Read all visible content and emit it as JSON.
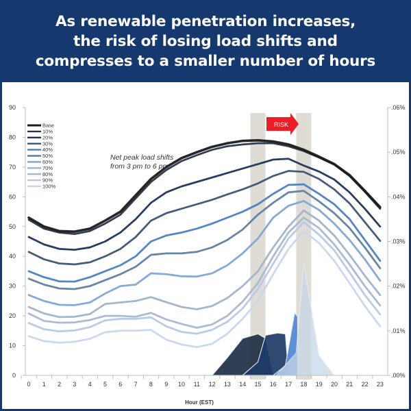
{
  "header": {
    "title_lines": [
      "As renewable penetration increases,",
      "the risk of losing load shifts and",
      "compresses to a smaller number of hours"
    ]
  },
  "colors": {
    "header_bg": "#15386f",
    "risk_arrow": "#ee1c24",
    "highlight_band": "#d9d6ce"
  },
  "chart_data": {
    "type": "line",
    "title": "As renewable penetration increases, the risk of losing load shifts and compresses to a smaller number of hours",
    "xlabel": "Hour (EST)",
    "ylabel": "",
    "y2label": "",
    "x": [
      0,
      1,
      2,
      3,
      4,
      5,
      6,
      7,
      8,
      9,
      10,
      11,
      12,
      13,
      14,
      15,
      16,
      17,
      18,
      19,
      20,
      21,
      22,
      23
    ],
    "x_tick_labels": [
      "0",
      "1",
      "2",
      "3",
      "4",
      "5",
      "6",
      "7",
      "8",
      "9",
      "10",
      "11",
      "12",
      "13",
      "14",
      "15",
      "16",
      "17",
      "18",
      "19",
      "20",
      "21",
      "22",
      "23"
    ],
    "ylim": [
      0,
      90
    ],
    "y_ticks": [
      0,
      10,
      20,
      30,
      40,
      50,
      60,
      70,
      80,
      90
    ],
    "y_tick_labels": [
      "0",
      "10",
      "20",
      "30",
      "40",
      "50",
      "60",
      "70",
      "80",
      "90"
    ],
    "y2lim": [
      0,
      0.06
    ],
    "y2_ticks": [
      0,
      0.01,
      0.02,
      0.03,
      0.04,
      0.05,
      0.06
    ],
    "y2_tick_labels": [
      ".00%",
      ".01%",
      ".02%",
      ".03%",
      ".04%",
      ".05%",
      ".06%"
    ],
    "grid": false,
    "legend_position": "top-left",
    "annotation": [
      "Net peak load shifts",
      "from 3 pm to 6 pm."
    ],
    "risk_label": "RISK",
    "highlight_hours": [
      15,
      18
    ],
    "series": [
      {
        "name": "Base",
        "color": "#1a1a1a",
        "values": [
          53,
          50,
          48.5,
          48.3,
          49.3,
          52,
          55,
          60.5,
          66,
          70,
          73,
          75,
          76.8,
          78,
          78.8,
          79,
          78.6,
          77.6,
          75.8,
          73.5,
          71,
          67.3,
          62,
          56.5
        ]
      },
      {
        "name": "10%",
        "color": "#27344a",
        "values": [
          52.3,
          49.3,
          48,
          47.5,
          48.5,
          51,
          54,
          59.5,
          65,
          69,
          72,
          74,
          75.8,
          77,
          77.6,
          78,
          78,
          77,
          75.4,
          73.2,
          70.8,
          67,
          61.7,
          56
        ]
      },
      {
        "name": "20%",
        "color": "#1c3358",
        "values": [
          46.5,
          44,
          42.5,
          42.2,
          43,
          45,
          48,
          52.5,
          58,
          61.5,
          63.5,
          65,
          66.5,
          68,
          69.5,
          71,
          72.5,
          72.8,
          70.5,
          68.5,
          65.8,
          61.5,
          56,
          50
        ]
      },
      {
        "name": "30%",
        "color": "#3c5473",
        "values": [
          41.5,
          39,
          37.6,
          37.3,
          38,
          40,
          42.5,
          46.5,
          52,
          54.5,
          56,
          57.5,
          59,
          60.8,
          62.5,
          64.5,
          67,
          68.7,
          68.4,
          66,
          62.5,
          57.8,
          51.5,
          45.2
        ]
      },
      {
        "name": "40%",
        "color": "#4a7fc4",
        "values": [
          35,
          33,
          31.6,
          31.5,
          33,
          35,
          37,
          40,
          45,
          47,
          48,
          49.3,
          51,
          53,
          55,
          57.5,
          61,
          64,
          64.2,
          61,
          57.5,
          52.5,
          45.5,
          38.5
        ]
      },
      {
        "name": "50%",
        "color": "#5f7ea0",
        "values": [
          32.5,
          30.5,
          29.2,
          29,
          30,
          32,
          34,
          36.5,
          40.5,
          41,
          41,
          41.5,
          43,
          45.5,
          49,
          54,
          58,
          61.5,
          62,
          58.5,
          54.5,
          49.5,
          43,
          36
        ]
      },
      {
        "name": "60%",
        "color": "#7fa4d8",
        "values": [
          27,
          25,
          23.7,
          23.6,
          24.5,
          27.5,
          30,
          30.5,
          34.3,
          34,
          33.3,
          33.2,
          34.3,
          37,
          41,
          46,
          53,
          57,
          58.6,
          55.6,
          51,
          45.5,
          39,
          31.8
        ]
      },
      {
        "name": "70%",
        "color": "#9fb3c9",
        "values": [
          23,
          20.8,
          19.6,
          19.7,
          20.6,
          24,
          24.5,
          25,
          26.3,
          24.6,
          23,
          22.2,
          23.3,
          26,
          30,
          35,
          43,
          50,
          55.4,
          52,
          47,
          40.5,
          33.5,
          27
        ]
      },
      {
        "name": "80%",
        "color": "#a6b8cf",
        "values": [
          20.8,
          18.3,
          17.7,
          17.8,
          18.6,
          20,
          20,
          19.7,
          21,
          18.8,
          17.3,
          16,
          17.1,
          20,
          24.8,
          31,
          40,
          48,
          53,
          49.5,
          44,
          37.3,
          30,
          23.5
        ]
      },
      {
        "name": "90%",
        "color": "#b5c8e6",
        "values": [
          17.6,
          15.5,
          14.8,
          15.1,
          16.2,
          18.5,
          19,
          19,
          19.5,
          16.5,
          14.6,
          14,
          15.3,
          18,
          22.5,
          29,
          37.5,
          46,
          51.5,
          47.3,
          42,
          34.6,
          27,
          20.5
        ]
      },
      {
        "name": "100%",
        "color": "#c8d6ed",
        "values": [
          13.2,
          11.5,
          11,
          11.3,
          12.3,
          14.5,
          15,
          15,
          15.3,
          12,
          10.4,
          9.5,
          10.6,
          14,
          19,
          25,
          34,
          42.5,
          48.5,
          44.5,
          38.5,
          31,
          23.3,
          16.5
        ]
      }
    ],
    "risk_series_right_axis": [
      {
        "name": "risk-base",
        "color": "#1f2f45",
        "values_x": [
          12,
          13,
          14,
          15,
          15.5,
          16
        ],
        "values": [
          0,
          0.004,
          0.0083,
          0.0093,
          0.0083,
          0.0003
        ]
      },
      {
        "name": "risk-30%",
        "color": "#1e3a66",
        "values_x": [
          14,
          15,
          15.5,
          16.3,
          16.8,
          17
        ],
        "values": [
          0,
          0.003,
          0.009,
          0.0095,
          0.0093,
          0.0003
        ]
      },
      {
        "name": "risk-60%",
        "color": "#4f86d4",
        "values_x": [
          16,
          16.8,
          17.4,
          17.6
        ],
        "values": [
          0,
          0.0022,
          0.014,
          0.0132
        ]
      },
      {
        "name": "risk-100%",
        "color": "#c8d7e8",
        "values_x": [
          16.2,
          17.5,
          18,
          18.5,
          19,
          20
        ],
        "values": [
          0,
          0.005,
          0.025,
          0.015,
          0.0045,
          0
        ]
      }
    ]
  }
}
